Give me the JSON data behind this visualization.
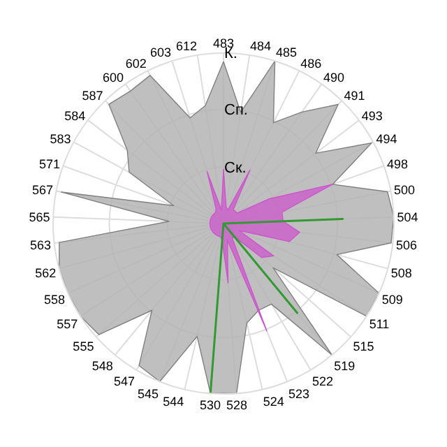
{
  "chart_data": {
    "type": "radar",
    "categories": [
      "483",
      "484",
      "485",
      "486",
      "490",
      "491",
      "493",
      "494",
      "498",
      "500",
      "504",
      "506",
      "508",
      "509",
      "511",
      "515",
      "519",
      "522",
      "523",
      "524",
      "528",
      "530",
      "544",
      "545",
      "547",
      "548",
      "555",
      "557",
      "558",
      "562",
      "563",
      "565",
      "567",
      "571",
      "583",
      "584",
      "587",
      "600",
      "602",
      "603",
      "612"
    ],
    "series": [
      {
        "color": "#b4b4b4",
        "values": [
          0.95,
          0.66,
          1.0,
          0.66,
          0.8,
          0.97,
          0.68,
          0.99,
          0.68,
          0.98,
          1.0,
          0.99,
          0.69,
          1.0,
          1.0,
          0.39,
          1.0,
          0.55,
          0.55,
          0.6,
          1.0,
          1.0,
          0.68,
          1.0,
          0.97,
          0.66,
          0.98,
          1.0,
          1.0,
          1.0,
          0.97,
          0.32,
          0.97,
          0.31,
          0.63,
          0.71,
          0.97,
          0.95,
          0.97,
          0.65,
          0.7
        ]
      },
      {
        "color": "#cc55cc",
        "values": [
          0.32,
          0.1,
          0.08,
          0.35,
          0.1,
          0.1,
          0.1,
          0.3,
          0.68,
          0.35,
          0.35,
          0.45,
          0.4,
          0.1,
          0.35,
          0.3,
          0.1,
          0.1,
          0.68,
          0.1,
          0.35,
          0.1,
          0.08,
          0.08,
          0.08,
          0.08,
          0.08,
          0.08,
          0.08,
          0.08,
          0.08,
          0.08,
          0.08,
          0.08,
          0.08,
          0.08,
          0.08,
          0.08,
          0.1,
          0.32,
          0.08
        ]
      },
      {
        "color": "#339933",
        "values": [
          0,
          0,
          0,
          0,
          0,
          0,
          0,
          0,
          0,
          0,
          0.7,
          0,
          0,
          0,
          0,
          0,
          0.68,
          0,
          0,
          0,
          0,
          1.0,
          0,
          0,
          0,
          0,
          0,
          0,
          0,
          0,
          0,
          0,
          0,
          0,
          0,
          0,
          0,
          0,
          0,
          0,
          0
        ]
      }
    ],
    "ylim": [
      0,
      1
    ],
    "yticks": [
      {
        "value": 0.33,
        "label": "Ск."
      },
      {
        "value": 0.67,
        "label": "Сп."
      },
      {
        "value": 1,
        "label": "К."
      }
    ],
    "grid": true
  }
}
